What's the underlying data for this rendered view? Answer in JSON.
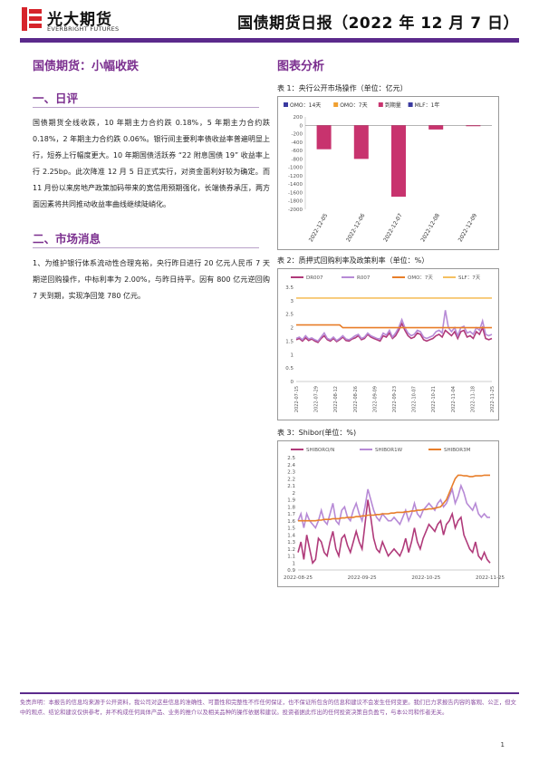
{
  "header": {
    "logo_cn": "光大期货",
    "logo_en": "EVERBRIGHT FUTURES",
    "title": "国债期货日报（2022 年 12 月 7 日）",
    "accent": "#5b2a8c",
    "logo_red": "#d6242b"
  },
  "left": {
    "main_title": "国债期货：小幅收跌",
    "sections": [
      {
        "title": "一、日评",
        "paragraphs": [
          "国债期货全线收跌，10 年期主力合约跌 0.18%，5 年期主力合约跌 0.18%，2 年期主力合约跌 0.06%。银行间主要利率债收益率普遍明显上行，短券上行幅度更大。10 年期国债活跃券 “22 附息国债 19” 收益率上行 2.25bp。此次降准 12 月 5 日正式实行，对资金面利好较为确定。而 11 月份以来房地产政策加码带来的宽信用预期强化，长端债券承压，两方面因素将共同推动收益率曲线继续陡峭化。"
        ]
      },
      {
        "title": "二、市场消息",
        "paragraphs": [
          "1、为维护银行体系流动性合理充裕，央行昨日进行 20 亿元人民币 7 天期逆回购操作，中标利率为 2.00%，与昨日持平。因有 800 亿元逆回购 7 天到期，实现净回笼 780 亿元。"
        ]
      }
    ]
  },
  "right": {
    "title": "图表分析",
    "chart1_caption": "表 1：央行公开市场操作（单位：亿元）",
    "chart2_caption": "表 2：质押式回购利率及政策利率（单位：%）",
    "chart3_caption": "表 3：Shibor(单位：%)"
  },
  "chart_data": [
    {
      "type": "bar",
      "legend": [
        "OMO：14天",
        "OMO：7天",
        "到期量",
        "MLF：1年"
      ],
      "legend_colors": [
        "#3a3aa0",
        "#f0a030",
        "#c8336e",
        "#3a3aa0"
      ],
      "categories": [
        "2022-12-05",
        "2022-12-06",
        "2022-12-07",
        "2022-12-08",
        "2022-12-09"
      ],
      "series": [
        {
          "name": "到期量",
          "values": [
            -570,
            -800,
            -1700,
            -100,
            -20
          ]
        }
      ],
      "ylim": [
        -2000,
        200
      ],
      "yticks": [
        200,
        0,
        -200,
        -400,
        -600,
        -800,
        -1000,
        -1200,
        -1400,
        -1600,
        -1800,
        -2000
      ]
    },
    {
      "type": "line",
      "legend": [
        "DR007",
        "R007",
        "OMO：7天",
        "SLF：7天"
      ],
      "colors": [
        "#b03a7a",
        "#b78ad6",
        "#e87e2a",
        "#f5c060"
      ],
      "x_ticks": [
        "2022-07-15",
        "2022-07-29",
        "2022-08-12",
        "2022-08-26",
        "2022-09-09",
        "2022-09-23",
        "2022-10-07",
        "2022-10-21",
        "2022-11-04",
        "2022-11-18",
        "2022-11-25"
      ],
      "ylim": [
        0,
        3.5
      ],
      "yticks": [
        3.5,
        3,
        2.5,
        2,
        1.5,
        1,
        0.5,
        0
      ],
      "series": [
        {
          "name": "DR007",
          "values": [
            1.55,
            1.6,
            1.5,
            1.62,
            1.52,
            1.58,
            1.5,
            1.45,
            1.6,
            1.7,
            1.55,
            1.5,
            1.6,
            1.48,
            1.55,
            1.65,
            1.52,
            1.5,
            1.58,
            1.62,
            1.7,
            1.55,
            1.6,
            1.75,
            1.65,
            1.6,
            1.55,
            1.5,
            1.7,
            1.65,
            1.8,
            1.6,
            1.7,
            1.9,
            2.15,
            1.9,
            1.7,
            1.6,
            1.65,
            1.8,
            1.75,
            1.55,
            1.5,
            1.55,
            1.6,
            1.7,
            1.75,
            1.65,
            1.9,
            1.8,
            1.7,
            1.85,
            1.6,
            1.85,
            1.9,
            1.65,
            1.7,
            1.6,
            1.85,
            1.75,
            2.0,
            1.6,
            1.55,
            1.6
          ]
        },
        {
          "name": "R007",
          "values": [
            1.6,
            1.65,
            1.55,
            1.7,
            1.58,
            1.62,
            1.55,
            1.5,
            1.65,
            1.8,
            1.6,
            1.55,
            1.65,
            1.52,
            1.6,
            1.7,
            1.58,
            1.55,
            1.62,
            1.7,
            1.75,
            1.6,
            1.65,
            1.8,
            1.7,
            1.65,
            1.6,
            1.58,
            1.8,
            1.72,
            1.9,
            1.65,
            1.8,
            2.0,
            2.3,
            2.0,
            1.8,
            1.7,
            1.75,
            1.9,
            1.85,
            1.65,
            1.6,
            1.65,
            1.7,
            1.85,
            1.9,
            1.8,
            2.65,
            2.0,
            1.85,
            2.0,
            1.7,
            2.0,
            2.05,
            1.8,
            1.85,
            1.75,
            2.0,
            1.9,
            2.25,
            1.75,
            1.7,
            1.75
          ]
        },
        {
          "name": "OMO：7天",
          "values": [
            2.1,
            2.1,
            2.1,
            2.1,
            2.1,
            2.1,
            2.1,
            2.1,
            2.1,
            2.1,
            2.1,
            2.1,
            2.1,
            2.1,
            2.1,
            2.0,
            2.0,
            2.0,
            2.0,
            2.0,
            2.0,
            2.0,
            2.0,
            2.0,
            2.0,
            2.0,
            2.0,
            2.0,
            2.0,
            2.0,
            2.0,
            2.0,
            2.0,
            2.0,
            2.0,
            2.0,
            2.0,
            2.0,
            2.0,
            2.0,
            2.0,
            2.0,
            2.0,
            2.0,
            2.0,
            2.0,
            2.0,
            2.0,
            2.0,
            2.0,
            2.0,
            2.0,
            2.0,
            2.0,
            2.0,
            2.0,
            2.0,
            2.0,
            2.0,
            2.0,
            2.0,
            2.0,
            2.0,
            2.0
          ]
        },
        {
          "name": "SLF：7天",
          "values": [
            3.1,
            3.1,
            3.1,
            3.1,
            3.1,
            3.1,
            3.1,
            3.1,
            3.1,
            3.1,
            3.1,
            3.1,
            3.1,
            3.1,
            3.1,
            3.1,
            3.1,
            3.1,
            3.1,
            3.1,
            3.1,
            3.1,
            3.1,
            3.1,
            3.1,
            3.1,
            3.1,
            3.1,
            3.1,
            3.1,
            3.1,
            3.1,
            3.1,
            3.1,
            3.1,
            3.1,
            3.1,
            3.1,
            3.1,
            3.1,
            3.1,
            3.1,
            3.1,
            3.1,
            3.1,
            3.1,
            3.1,
            3.1,
            3.1,
            3.1,
            3.1,
            3.1,
            3.1,
            3.1,
            3.1,
            3.1,
            3.1,
            3.1,
            3.1,
            3.1,
            3.1,
            3.1,
            3.1,
            3.1
          ]
        }
      ]
    },
    {
      "type": "line",
      "legend": [
        "SHIBORO/N",
        "SHIBOR1W",
        "SHIBOR3M"
      ],
      "colors": [
        "#b03a7a",
        "#b78ad6",
        "#e87e2a"
      ],
      "x_ticks": [
        "2022-08-25",
        "2022-09-25",
        "2022-10-25",
        "2022-11-25"
      ],
      "ylim": [
        0.9,
        2.5
      ],
      "yticks": [
        2.5,
        2.4,
        2.3,
        2.2,
        2.1,
        2.0,
        1.9,
        1.8,
        1.7,
        1.6,
        1.5,
        1.4,
        1.3,
        1.2,
        1.1,
        1.0,
        0.9
      ],
      "series": [
        {
          "name": "SHIBORO/N",
          "values": [
            1.15,
            1.3,
            1.05,
            1.4,
            1.2,
            1.0,
            1.05,
            1.35,
            1.3,
            1.15,
            1.1,
            1.3,
            1.45,
            1.2,
            1.1,
            1.35,
            1.4,
            1.25,
            1.15,
            1.3,
            1.45,
            1.3,
            1.2,
            1.55,
            1.9,
            1.65,
            1.35,
            1.2,
            1.15,
            1.3,
            1.2,
            1.1,
            1.15,
            1.2,
            1.15,
            1.1,
            1.2,
            1.35,
            1.15,
            1.3,
            1.5,
            1.3,
            1.2,
            1.35,
            1.45,
            1.55,
            1.5,
            1.45,
            1.55,
            1.6,
            1.4,
            1.55,
            1.6,
            1.7,
            1.5,
            1.6,
            1.65,
            1.4,
            1.3,
            1.2,
            1.15,
            1.3,
            1.1,
            1.05,
            1.15,
            1.05,
            1.0
          ]
        },
        {
          "name": "SHIBOR1W",
          "values": [
            1.6,
            1.7,
            1.5,
            1.7,
            1.6,
            1.55,
            1.5,
            1.6,
            1.75,
            1.6,
            1.55,
            1.7,
            1.85,
            1.6,
            1.55,
            1.75,
            1.8,
            1.65,
            1.6,
            1.75,
            1.85,
            1.7,
            1.6,
            1.8,
            2.05,
            1.9,
            1.75,
            1.65,
            1.6,
            1.7,
            1.65,
            1.6,
            1.6,
            1.65,
            1.6,
            1.55,
            1.65,
            1.75,
            1.6,
            1.7,
            1.85,
            1.7,
            1.65,
            1.75,
            1.8,
            1.85,
            1.8,
            1.75,
            1.85,
            1.9,
            1.8,
            1.85,
            1.95,
            2.05,
            1.85,
            1.95,
            2.1,
            2.0,
            1.85,
            1.8,
            1.75,
            1.85,
            1.7,
            1.65,
            1.7,
            1.65,
            1.65
          ]
        },
        {
          "name": "SHIBOR3M",
          "values": [
            1.6,
            1.6,
            1.6,
            1.6,
            1.6,
            1.6,
            1.6,
            1.61,
            1.61,
            1.62,
            1.62,
            1.62,
            1.63,
            1.63,
            1.63,
            1.64,
            1.64,
            1.65,
            1.65,
            1.65,
            1.66,
            1.66,
            1.67,
            1.67,
            1.68,
            1.68,
            1.68,
            1.69,
            1.69,
            1.7,
            1.7,
            1.7,
            1.71,
            1.71,
            1.72,
            1.72,
            1.72,
            1.73,
            1.73,
            1.74,
            1.74,
            1.75,
            1.75,
            1.76,
            1.76,
            1.77,
            1.77,
            1.78,
            1.79,
            1.8,
            1.85,
            1.9,
            2.0,
            2.1,
            2.2,
            2.25,
            2.25,
            2.24,
            2.24,
            2.23,
            2.23,
            2.24,
            2.24,
            2.24,
            2.25,
            2.25,
            2.25
          ]
        }
      ]
    }
  ],
  "footer": {
    "disclaimer": "免责声明：本报告的信息均来源于公开资料，我公司对这些信息的准确性、可靠性和完整性不作任何保证，也不保证所包含的信息和建议不会发生任何变更。我们已力求报告内容的客观、公正，但文中的观点、结论和建议仅供参考，并不构成任何具体产品、业务的推介以及相关品种的操作依据和建议。投资者据此作出的任何投资决策自负盈亏，与本公司和作者无关。",
    "page": "1"
  }
}
